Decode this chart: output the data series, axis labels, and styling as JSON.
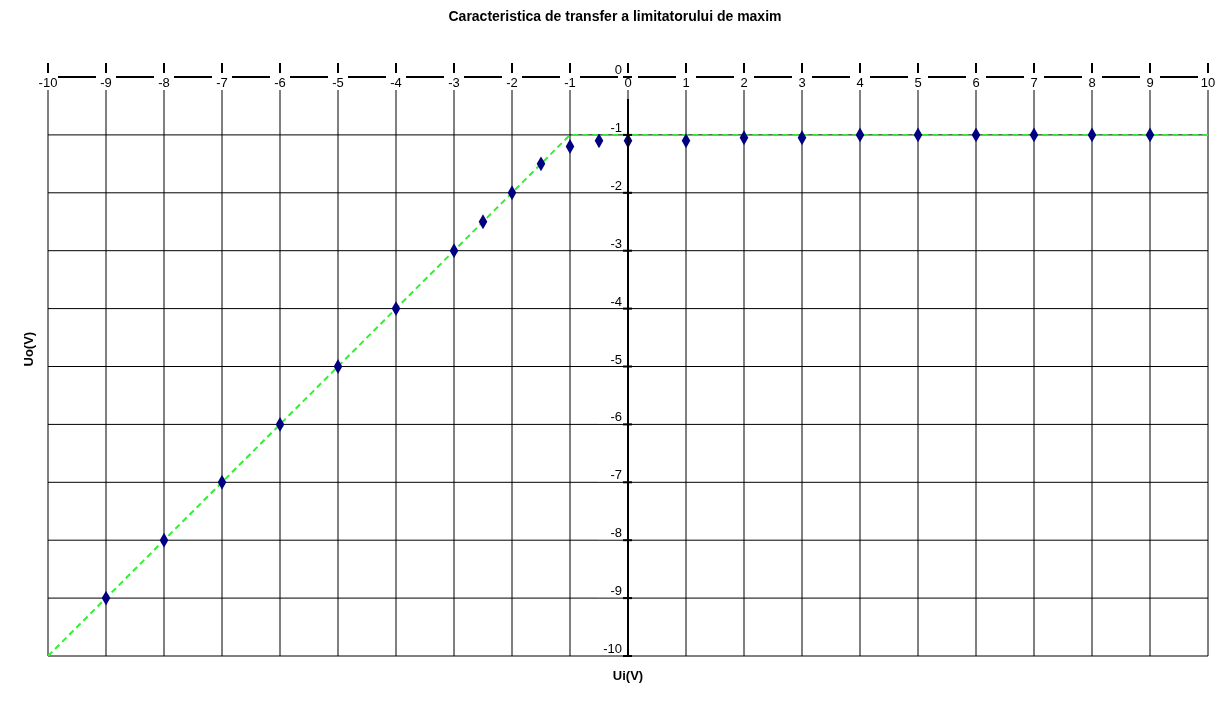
{
  "chart_data": {
    "type": "scatter",
    "title": "Caracteristica de transfer a limitatorului de maxim",
    "xlabel": "Ui(V)",
    "ylabel": "Uo(V)",
    "xlim": [
      -10,
      10
    ],
    "ylim": [
      -10,
      0
    ],
    "xticks": [
      -10,
      -9,
      -8,
      -7,
      -6,
      -5,
      -4,
      -3,
      -2,
      -1,
      0,
      1,
      2,
      3,
      4,
      5,
      6,
      7,
      8,
      9,
      10
    ],
    "yticks": [
      -10,
      -9,
      -8,
      -7,
      -6,
      -5,
      -4,
      -3,
      -2,
      -1,
      0
    ],
    "grid": true,
    "marker": "diamond",
    "series": [
      {
        "color": "#000080",
        "x": [
          -9,
          -8,
          -7,
          -6,
          -5,
          -4,
          -3,
          -2.5,
          -2,
          -1.5,
          -1,
          -0.5,
          0,
          1,
          2,
          3,
          4,
          5,
          6,
          7,
          8,
          9
        ],
        "values": [
          -9,
          -8,
          -7,
          -6,
          -5,
          -4,
          -3,
          -2.5,
          -2,
          -1.5,
          -1.2,
          -1.1,
          -1.1,
          -1.1,
          -1.05,
          -1.05,
          -1.0,
          -1.0,
          -1.0,
          -1.0,
          -1.0,
          -1.0
        ]
      },
      {
        "type": "line",
        "color": "#33ee33",
        "line_style": "dashed",
        "marker": "none",
        "x": [
          -10,
          -1,
          10
        ],
        "values": [
          -10,
          -1,
          -1
        ]
      }
    ]
  }
}
